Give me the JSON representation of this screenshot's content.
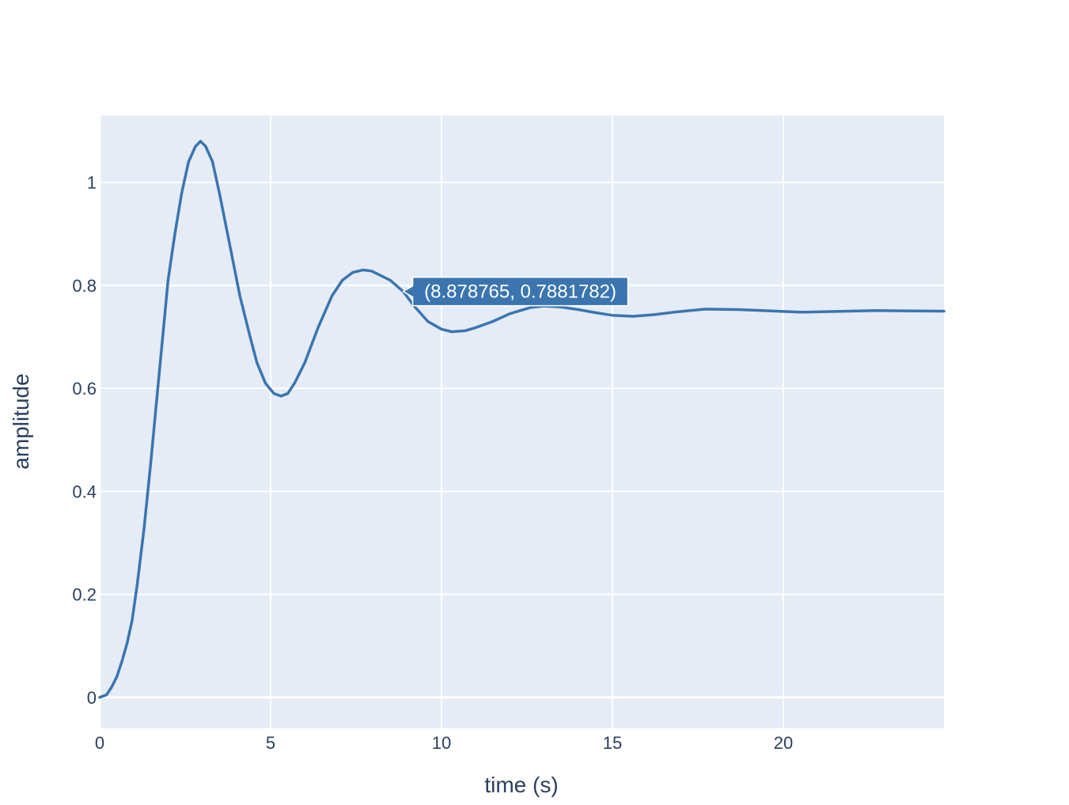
{
  "chart_data": {
    "type": "line",
    "title": "",
    "xlabel": "time (s)",
    "ylabel": "amplitude",
    "xlim": [
      0,
      24.7
    ],
    "ylim": [
      -0.06,
      1.13
    ],
    "x_ticks": [
      0,
      5,
      10,
      15,
      20
    ],
    "x_tick_labels": [
      "0",
      "5",
      "10",
      "15",
      "20"
    ],
    "y_ticks": [
      0,
      0.2,
      0.4,
      0.6,
      0.8,
      1
    ],
    "y_tick_labels": [
      "0",
      "0.2",
      "0.4",
      "0.6",
      "0.8",
      "1"
    ],
    "grid": true,
    "legend": "none",
    "colors": {
      "line": "#3b75af",
      "plot_bg": "#e5ecf6",
      "grid": "#ffffff",
      "text": "#2a3f5f"
    },
    "series": [
      {
        "x": [
          0,
          0.2,
          0.35,
          0.5,
          0.65,
          0.8,
          0.95,
          1.1,
          1.3,
          1.5,
          1.7,
          1.9,
          2.0,
          2.2,
          2.4,
          2.6,
          2.8,
          2.95,
          3.1,
          3.3,
          3.5,
          3.8,
          4.1,
          4.4,
          4.6,
          4.85,
          5.1,
          5.3,
          5.5,
          5.7,
          6.0,
          6.4,
          6.8,
          7.1,
          7.4,
          7.7,
          7.95,
          8.2,
          8.5,
          8.88,
          9.2,
          9.6,
          10.0,
          10.3,
          10.7,
          11.0,
          11.5,
          12.0,
          12.6,
          13.0,
          13.5,
          14.0,
          14.5,
          15.0,
          15.6,
          16.2,
          16.8,
          17.7,
          18.7,
          20.5,
          22.7,
          24.7
        ],
        "y": [
          0,
          0.005,
          0.02,
          0.04,
          0.07,
          0.105,
          0.15,
          0.22,
          0.33,
          0.46,
          0.6,
          0.74,
          0.81,
          0.9,
          0.98,
          1.04,
          1.07,
          1.08,
          1.07,
          1.04,
          0.98,
          0.88,
          0.78,
          0.7,
          0.65,
          0.61,
          0.59,
          0.585,
          0.59,
          0.61,
          0.65,
          0.72,
          0.78,
          0.81,
          0.825,
          0.83,
          0.828,
          0.82,
          0.81,
          0.788,
          0.76,
          0.73,
          0.715,
          0.71,
          0.712,
          0.718,
          0.73,
          0.745,
          0.757,
          0.76,
          0.758,
          0.753,
          0.747,
          0.742,
          0.74,
          0.743,
          0.748,
          0.754,
          0.753,
          0.748,
          0.751,
          0.75
        ]
      }
    ]
  },
  "hover": {
    "label": "(8.878765, 0.7881782)",
    "x": 8.878765,
    "y": 0.7881782
  }
}
